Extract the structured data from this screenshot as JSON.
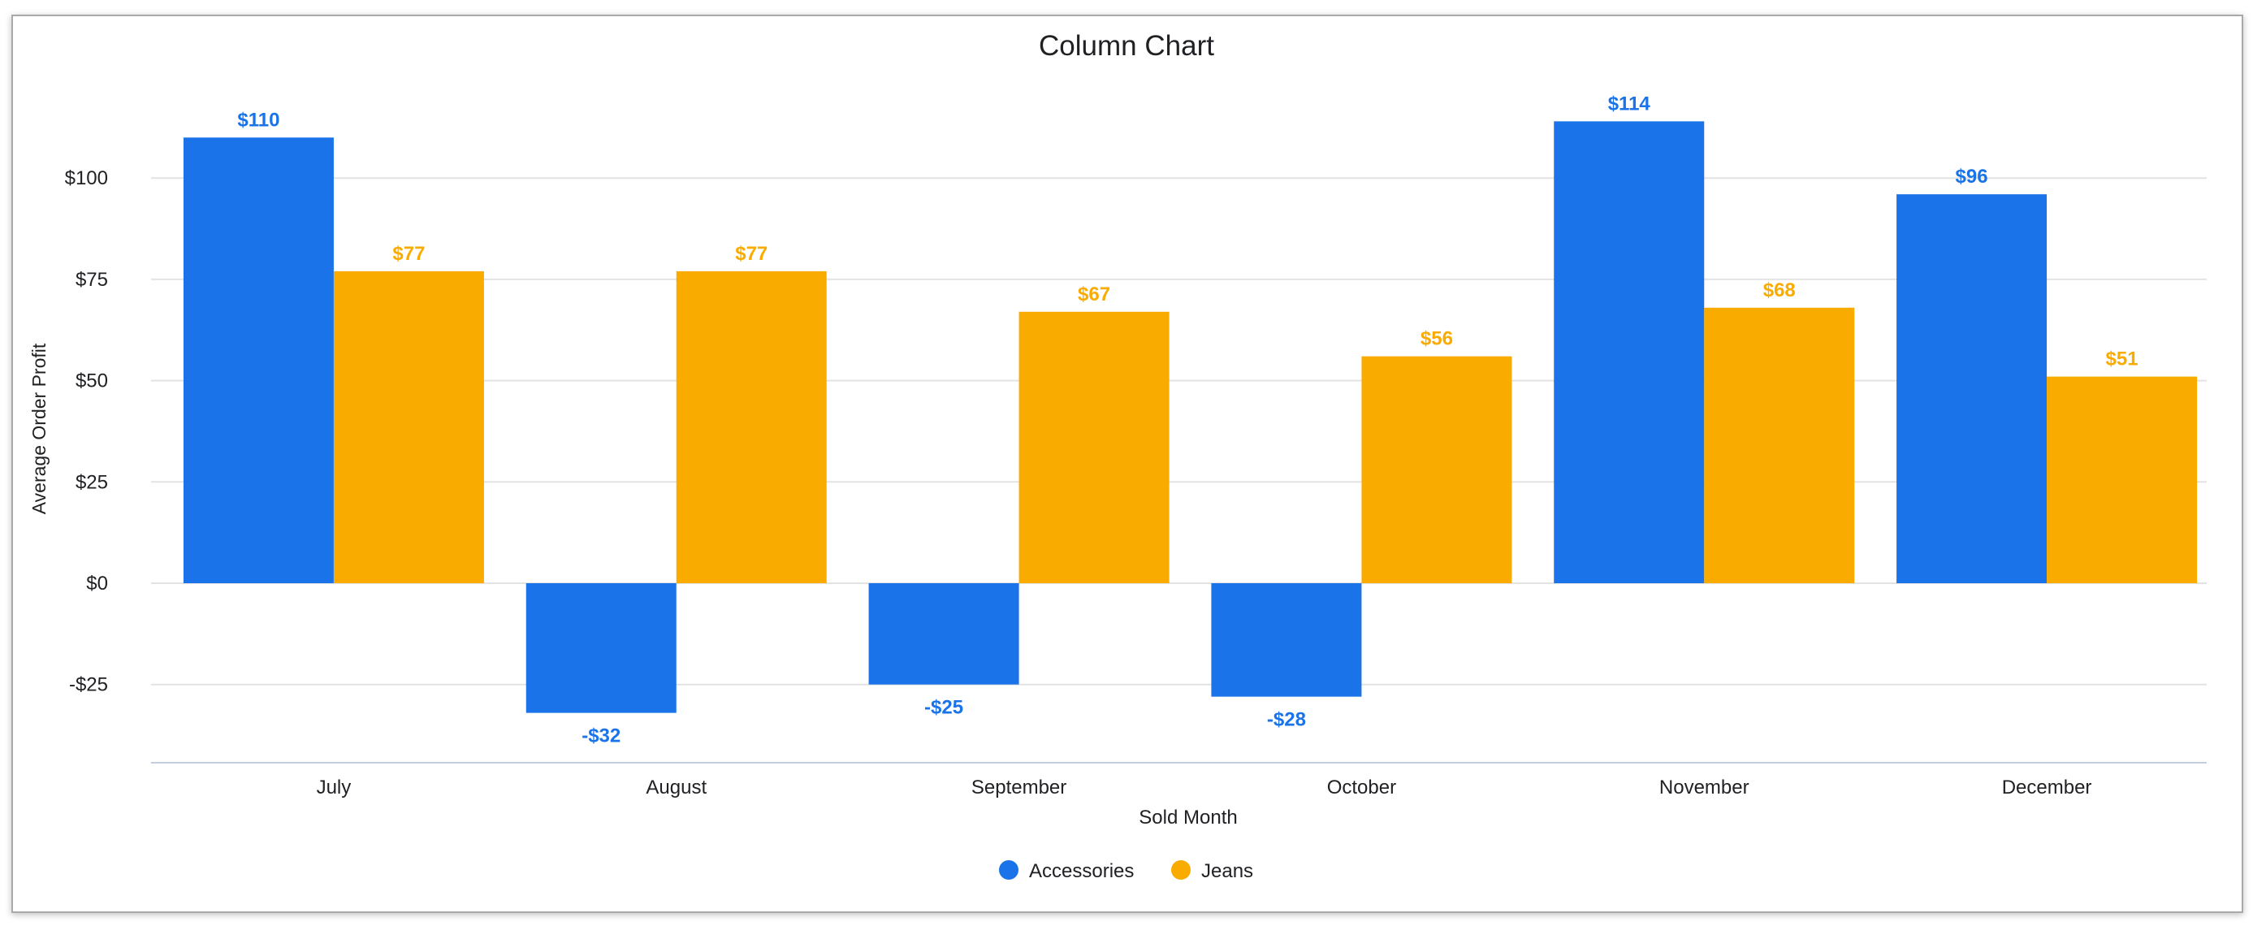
{
  "chart_data": {
    "type": "bar",
    "title": "Column Chart",
    "xlabel": "Sold Month",
    "ylabel": "Average Order Profit",
    "categories": [
      "July",
      "August",
      "September",
      "October",
      "November",
      "December"
    ],
    "series": [
      {
        "name": "Accessories",
        "color": "#1a73e8",
        "values": [
          110,
          -32,
          -25,
          -28,
          114,
          96
        ],
        "labels": [
          "$110",
          "-$32",
          "-$25",
          "-$28",
          "$114",
          "$96"
        ]
      },
      {
        "name": "Jeans",
        "color": "#f9ab00",
        "values": [
          77,
          77,
          67,
          56,
          68,
          51
        ],
        "labels": [
          "$77",
          "$77",
          "$67",
          "$56",
          "$68",
          "$51"
        ]
      }
    ],
    "yticks": [
      -25,
      0,
      25,
      50,
      75,
      100
    ],
    "ytick_labels": [
      "-$25",
      "$0",
      "$25",
      "$50",
      "$75",
      "$100"
    ],
    "ylim": [
      -45,
      120
    ],
    "grid": true,
    "legend": "bottom"
  }
}
